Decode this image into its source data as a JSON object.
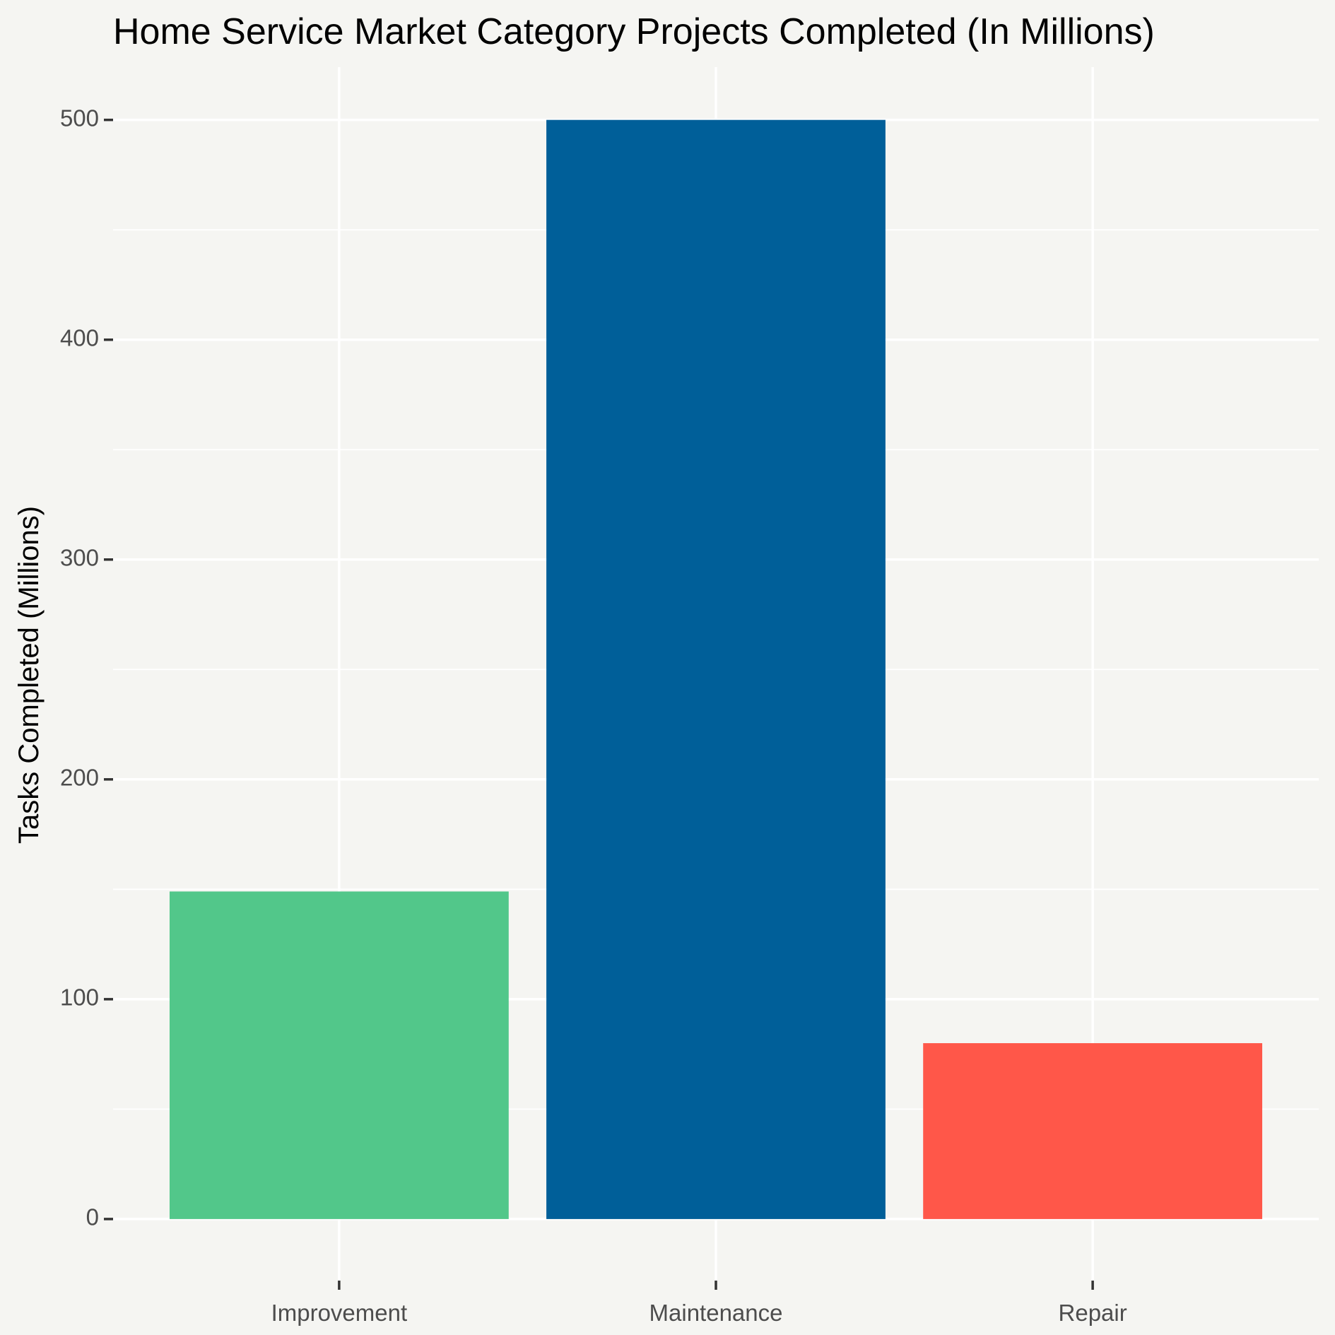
{
  "chart_data": {
    "type": "bar",
    "title": "Home Service Market Category Projects Completed (In Millions)",
    "xlabel": "",
    "ylabel": "Tasks Completed (Millions)",
    "categories": [
      "Improvement",
      "Maintenance",
      "Repair"
    ],
    "values": [
      149,
      500,
      80
    ],
    "colors": [
      "#52c78a",
      "#005f99",
      "#ff5749"
    ],
    "ylim": [
      -28,
      524
    ],
    "yticks": [
      0,
      100,
      200,
      300,
      400,
      500
    ],
    "grid": true,
    "legend": "none",
    "background": "#f5f5f2"
  }
}
